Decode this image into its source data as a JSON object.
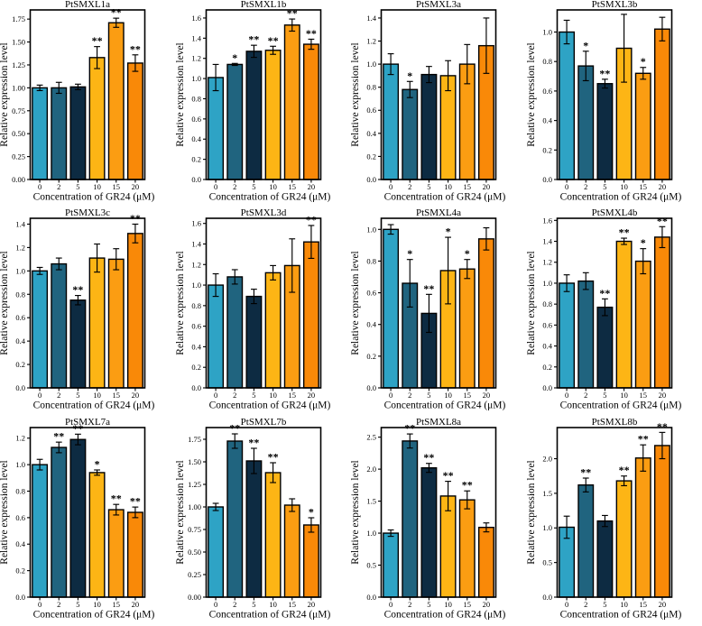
{
  "figure": {
    "xlabel": "Concentration of GR24 (μM)",
    "ylabel": "Relative expression level",
    "categories": [
      "0",
      "2",
      "5",
      "10",
      "15",
      "20"
    ],
    "bar_colors": [
      "#2EA3C5",
      "#20647F",
      "#0D2B42",
      "#FDB515",
      "#FB9D12",
      "#F98908"
    ],
    "edge_color": "#000000",
    "background_color": "#FFFFFF",
    "grid": "off",
    "legend": "none"
  },
  "chart_data": [
    {
      "type": "bar",
      "title": "PtSMXL1a",
      "xlabel": "Concentration of GR24 (μM)",
      "ylabel": "Relative expression level",
      "categories": [
        "0",
        "2",
        "5",
        "10",
        "15",
        "20"
      ],
      "values": [
        1.0,
        1.0,
        1.01,
        1.33,
        1.71,
        1.27
      ],
      "errors": [
        0.03,
        0.06,
        0.03,
        0.12,
        0.05,
        0.09
      ],
      "significance": [
        "",
        "",
        "",
        "**",
        "**",
        "**"
      ],
      "ylim": [
        0,
        1.85
      ],
      "yticks": {
        "values": [
          0,
          0.25,
          0.5,
          0.75,
          1.0,
          1.25,
          1.5,
          1.75
        ],
        "labels": [
          "0.00",
          "0.25",
          "0.50",
          "0.75",
          "1.00",
          "1.25",
          "1.50",
          "1.75"
        ]
      }
    },
    {
      "type": "bar",
      "title": "PtSMXL1b",
      "xlabel": "Concentration of GR24 (μM)",
      "ylabel": "Relative expression level",
      "categories": [
        "0",
        "2",
        "5",
        "10",
        "15",
        "20"
      ],
      "values": [
        1.01,
        1.14,
        1.27,
        1.28,
        1.53,
        1.34
      ],
      "errors": [
        0.13,
        0.01,
        0.06,
        0.04,
        0.06,
        0.05
      ],
      "significance": [
        "",
        "*",
        "**",
        "**",
        "**",
        "**"
      ],
      "ylim": [
        0,
        1.68
      ],
      "yticks": {
        "values": [
          0,
          0.2,
          0.4,
          0.6,
          0.8,
          1.0,
          1.2,
          1.4,
          1.6
        ],
        "labels": [
          "0.0",
          "0.2",
          "0.4",
          "0.6",
          "0.8",
          "1.0",
          "1.2",
          "1.4",
          "1.6"
        ]
      }
    },
    {
      "type": "bar",
      "title": "PtSMXL3a",
      "xlabel": "Concentration of GR24 (μM)",
      "ylabel": "Relative expression level",
      "categories": [
        "0",
        "2",
        "5",
        "10",
        "15",
        "20"
      ],
      "values": [
        1.0,
        0.78,
        0.91,
        0.9,
        1.0,
        1.16
      ],
      "errors": [
        0.09,
        0.07,
        0.07,
        0.13,
        0.17,
        0.24
      ],
      "significance": [
        "",
        "*",
        "",
        "",
        "",
        ""
      ],
      "ylim": [
        0,
        1.47
      ],
      "yticks": {
        "values": [
          0,
          0.2,
          0.4,
          0.6,
          0.8,
          1.0,
          1.2,
          1.4
        ],
        "labels": [
          "0.0",
          "0.2",
          "0.4",
          "0.6",
          "0.8",
          "1.0",
          "1.2",
          "1.4"
        ]
      }
    },
    {
      "type": "bar",
      "title": "PtSMXL3b",
      "xlabel": "Concentration of GR24 (μM)",
      "ylabel": "Relative expression level",
      "categories": [
        "0",
        "2",
        "5",
        "10",
        "15",
        "20"
      ],
      "values": [
        1.0,
        0.77,
        0.65,
        0.89,
        0.72,
        1.02
      ],
      "errors": [
        0.08,
        0.1,
        0.03,
        0.23,
        0.04,
        0.08
      ],
      "significance": [
        "",
        "*",
        "**",
        "",
        "*",
        ""
      ],
      "ylim": [
        0,
        1.15
      ],
      "yticks": {
        "values": [
          0,
          0.2,
          0.4,
          0.6,
          0.8,
          1.0
        ],
        "labels": [
          "0.0",
          "0.2",
          "0.4",
          "0.6",
          "0.8",
          "1.0"
        ]
      }
    },
    {
      "type": "bar",
      "title": "PtSMXL3c",
      "xlabel": "Concentration of GR24 (μM)",
      "ylabel": "Relative expression level",
      "categories": [
        "0",
        "2",
        "5",
        "10",
        "15",
        "20"
      ],
      "values": [
        1.0,
        1.06,
        0.75,
        1.11,
        1.1,
        1.32
      ],
      "errors": [
        0.03,
        0.05,
        0.04,
        0.12,
        0.09,
        0.08
      ],
      "significance": [
        "",
        "",
        "**",
        "",
        "",
        "**"
      ],
      "ylim": [
        0,
        1.45
      ],
      "yticks": {
        "values": [
          0,
          0.2,
          0.4,
          0.6,
          0.8,
          1.0,
          1.2,
          1.4
        ],
        "labels": [
          "0.0",
          "0.2",
          "0.4",
          "0.6",
          "0.8",
          "1.0",
          "1.2",
          "1.4"
        ]
      }
    },
    {
      "type": "bar",
      "title": "PtSMXL3d",
      "xlabel": "Concentration of GR24 (μM)",
      "ylabel": "Relative expression level",
      "categories": [
        "0",
        "2",
        "5",
        "10",
        "15",
        "20"
      ],
      "values": [
        1.0,
        1.08,
        0.89,
        1.12,
        1.19,
        1.42
      ],
      "errors": [
        0.11,
        0.07,
        0.07,
        0.07,
        0.26,
        0.16
      ],
      "significance": [
        "",
        "",
        "",
        "",
        "",
        "**"
      ],
      "ylim": [
        0,
        1.65
      ],
      "yticks": {
        "values": [
          0,
          0.2,
          0.4,
          0.6,
          0.8,
          1.0,
          1.2,
          1.4,
          1.6
        ],
        "labels": [
          "0.0",
          "0.2",
          "0.4",
          "0.6",
          "0.8",
          "1.0",
          "1.2",
          "1.4",
          "1.6"
        ]
      }
    },
    {
      "type": "bar",
      "title": "PtSMXL4a",
      "xlabel": "Concentration of GR24 (μM)",
      "ylabel": "Relative expression level",
      "categories": [
        "0",
        "2",
        "5",
        "10",
        "15",
        "20"
      ],
      "values": [
        1.0,
        0.66,
        0.47,
        0.74,
        0.75,
        0.94
      ],
      "errors": [
        0.03,
        0.15,
        0.12,
        0.21,
        0.06,
        0.07
      ],
      "significance": [
        "",
        "*",
        "**",
        "*",
        "*",
        ""
      ],
      "ylim": [
        0,
        1.07
      ],
      "yticks": {
        "values": [
          0,
          0.2,
          0.4,
          0.6,
          0.8,
          1.0
        ],
        "labels": [
          "0.0",
          "0.2",
          "0.4",
          "0.6",
          "0.8",
          "1.0"
        ]
      }
    },
    {
      "type": "bar",
      "title": "PtSMXL4b",
      "xlabel": "Concentration of GR24 (μM)",
      "ylabel": "Relative expression level",
      "categories": [
        "0",
        "2",
        "5",
        "10",
        "15",
        "20"
      ],
      "values": [
        1.0,
        1.02,
        0.77,
        1.4,
        1.21,
        1.44
      ],
      "errors": [
        0.08,
        0.08,
        0.08,
        0.03,
        0.12,
        0.1
      ],
      "significance": [
        "",
        "",
        "**",
        "**",
        "*",
        "**"
      ],
      "ylim": [
        0,
        1.62
      ],
      "yticks": {
        "values": [
          0,
          0.2,
          0.4,
          0.6,
          0.8,
          1.0,
          1.2,
          1.4,
          1.6
        ],
        "labels": [
          "0.0",
          "0.2",
          "0.4",
          "0.6",
          "0.8",
          "1.0",
          "1.2",
          "1.4",
          "1.6"
        ]
      }
    },
    {
      "type": "bar",
      "title": "PtSMXL7a",
      "xlabel": "Concentration of GR24 (μM)",
      "ylabel": "Relative expression level",
      "categories": [
        "0",
        "2",
        "5",
        "10",
        "15",
        "20"
      ],
      "values": [
        1.0,
        1.13,
        1.19,
        0.94,
        0.66,
        0.64
      ],
      "errors": [
        0.04,
        0.04,
        0.04,
        0.02,
        0.04,
        0.04
      ],
      "significance": [
        "",
        "**",
        "**",
        "*",
        "**",
        "**"
      ],
      "ylim": [
        0,
        1.28
      ],
      "yticks": {
        "values": [
          0,
          0.2,
          0.4,
          0.6,
          0.8,
          1.0,
          1.2
        ],
        "labels": [
          "0.0",
          "0.2",
          "0.4",
          "0.6",
          "0.8",
          "1.0",
          "1.2"
        ]
      }
    },
    {
      "type": "bar",
      "title": "PtSMXL7b",
      "xlabel": "Concentration of GR24 (μM)",
      "ylabel": "Relative expression level",
      "categories": [
        "0",
        "2",
        "5",
        "10",
        "15",
        "20"
      ],
      "values": [
        1.0,
        1.73,
        1.51,
        1.38,
        1.02,
        0.8
      ],
      "errors": [
        0.04,
        0.08,
        0.14,
        0.11,
        0.07,
        0.08
      ],
      "significance": [
        "",
        "**",
        "**",
        "**",
        "",
        "*"
      ],
      "ylim": [
        0,
        1.88
      ],
      "yticks": {
        "values": [
          0,
          0.25,
          0.5,
          0.75,
          1.0,
          1.25,
          1.5,
          1.75
        ],
        "labels": [
          "0.00",
          "0.25",
          "0.50",
          "0.75",
          "1.00",
          "1.25",
          "1.50",
          "1.75"
        ]
      }
    },
    {
      "type": "bar",
      "title": "PtSMXL8a",
      "xlabel": "Concentration of GR24 (μM)",
      "ylabel": "Relative expression level",
      "categories": [
        "0",
        "2",
        "5",
        "10",
        "15",
        "20"
      ],
      "values": [
        1.0,
        2.44,
        2.02,
        1.58,
        1.52,
        1.09
      ],
      "errors": [
        0.05,
        0.11,
        0.07,
        0.23,
        0.14,
        0.07
      ],
      "significance": [
        "",
        "**",
        "**",
        "**",
        "**",
        ""
      ],
      "ylim": [
        0,
        2.65
      ],
      "yticks": {
        "values": [
          0,
          0.5,
          1.0,
          1.5,
          2.0,
          2.5
        ],
        "labels": [
          "0.0",
          "0.5",
          "1.0",
          "1.5",
          "2.0",
          "2.5"
        ]
      }
    },
    {
      "type": "bar",
      "title": "PtSMXL8b",
      "xlabel": "Concentration of GR24 (μM)",
      "ylabel": "Relative expression level",
      "categories": [
        "0",
        "2",
        "5",
        "10",
        "15",
        "20"
      ],
      "values": [
        1.01,
        1.62,
        1.1,
        1.68,
        2.01,
        2.19
      ],
      "errors": [
        0.16,
        0.1,
        0.08,
        0.07,
        0.19,
        0.19
      ],
      "significance": [
        "",
        "**",
        "",
        "**",
        "**",
        "**"
      ],
      "ylim": [
        0,
        2.45
      ],
      "yticks": {
        "values": [
          0,
          0.5,
          1.0,
          1.5,
          2.0
        ],
        "labels": [
          "0.0",
          "0.5",
          "1.0",
          "1.5",
          "2.0"
        ]
      }
    }
  ]
}
